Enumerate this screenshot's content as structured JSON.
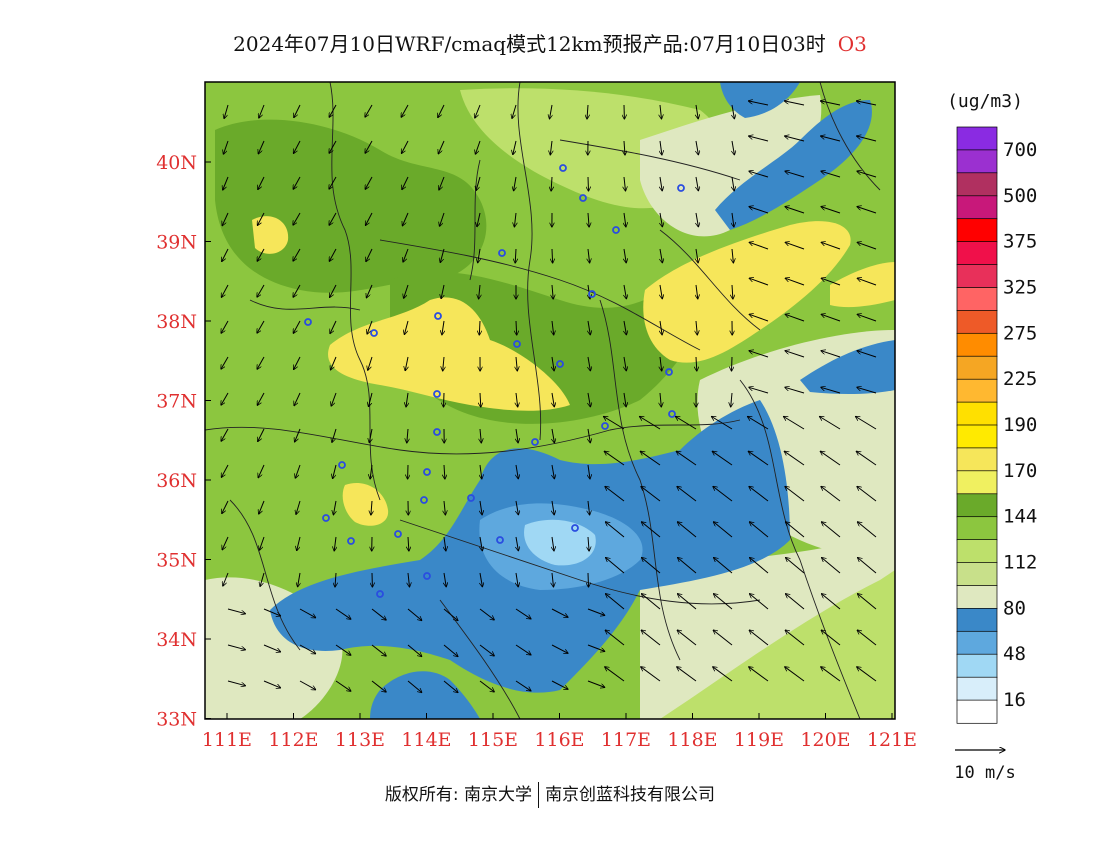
{
  "title": {
    "text": "2024年07月10日WRF/cmaq模式12km预报产品:07月10日03时",
    "species": "O3"
  },
  "legend": {
    "unit": "(ug/m3)",
    "levels": [
      {
        "label": "700",
        "color": "#8a2be2"
      },
      {
        "label": "",
        "color": "#9b30d0"
      },
      {
        "label": "500",
        "color": "#b03060"
      },
      {
        "label": "",
        "color": "#c8187a"
      },
      {
        "label": "375",
        "color": "#ff0000"
      },
      {
        "label": "",
        "color": "#f0104a"
      },
      {
        "label": "325",
        "color": "#e8305a"
      },
      {
        "label": "",
        "color": "#ff6464"
      },
      {
        "label": "275",
        "color": "#ee5a28"
      },
      {
        "label": "",
        "color": "#ff8c00"
      },
      {
        "label": "225",
        "color": "#f5a623"
      },
      {
        "label": "",
        "color": "#ffb830"
      },
      {
        "label": "190",
        "color": "#ffe000"
      },
      {
        "label": "",
        "color": "#ffea00"
      },
      {
        "label": "170",
        "color": "#f6e65a"
      },
      {
        "label": "",
        "color": "#f0f060"
      },
      {
        "label": "144",
        "color": "#6aaa2a"
      },
      {
        "label": "",
        "color": "#8cc63f"
      },
      {
        "label": "112",
        "color": "#bde06b"
      },
      {
        "label": "",
        "color": "#c8e08a"
      },
      {
        "label": "80",
        "color": "#dfe8c0"
      },
      {
        "label": "",
        "color": "#3a88c8"
      },
      {
        "label": "48",
        "color": "#5ea8de"
      },
      {
        "label": "",
        "color": "#a0d8f4"
      },
      {
        "label": "16",
        "color": "#d8eefa"
      },
      {
        "label": "",
        "color": "#ffffff"
      }
    ],
    "wind_scale": "10 m/s"
  },
  "map": {
    "lon_labels": [
      "111E",
      "112E",
      "113E",
      "114E",
      "115E",
      "116E",
      "117E",
      "118E",
      "119E",
      "120E",
      "121E"
    ],
    "lat_labels": [
      "40N",
      "39N",
      "38N",
      "37N",
      "36N",
      "35N",
      "34N",
      "33N"
    ],
    "colors": {
      "bg": "#8cc63f",
      "mid_green": "#bde06b",
      "dark_green": "#6aaa2a",
      "light": "#dfe8c0",
      "yellow": "#f6e65a",
      "blue": "#3a88c8",
      "mid_blue": "#5ea8de",
      "light_blue": "#a0d8f4",
      "axis_label": "#e03030"
    }
  },
  "footer": {
    "left": "版权所有: 南京大学",
    "right": "南京创蓝科技有限公司"
  }
}
